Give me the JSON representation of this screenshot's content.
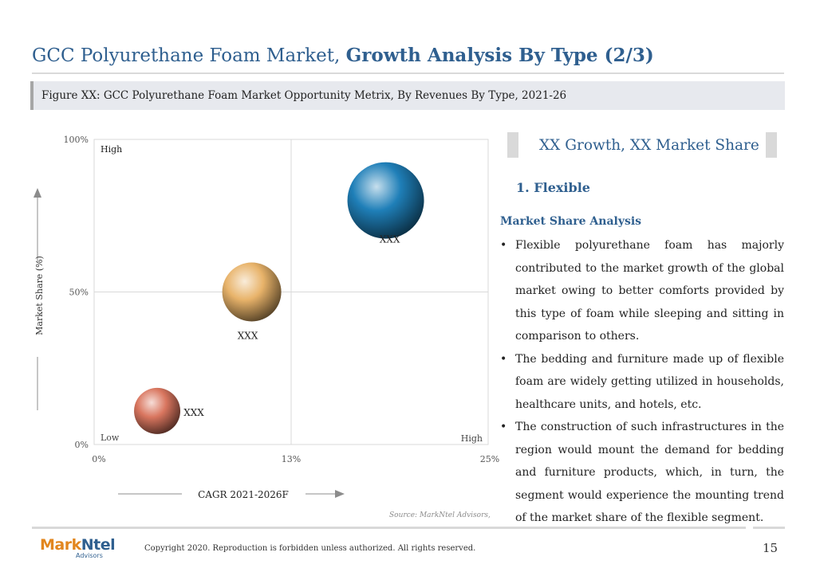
{
  "title": {
    "regular": "GCC Polyurethane Foam Market,",
    "bold": "Growth Analysis By Type (2/3)"
  },
  "figure_caption": "Figure XX: GCC Polyurethane Foam Market Opportunity Metrix, By Revenues By Type, 2021-26",
  "chart_data": {
    "type": "scatter",
    "title": "",
    "xlabel": "CAGR 2021-2026F",
    "ylabel": "Market Share (%)",
    "xlim": [
      0,
      25
    ],
    "ylim": [
      0,
      100
    ],
    "x_ticks": [
      "0%",
      "13%",
      "25%"
    ],
    "y_ticks": [
      "0%",
      "50%",
      "100%"
    ],
    "quadrant_labels": {
      "high_top": "High",
      "low": "Low",
      "high_right": "High"
    },
    "grid": "quadrant lines at midpoints",
    "points": [
      {
        "label": "XXX",
        "x": 18.5,
        "y": 80,
        "color": "#1f7fb8"
      },
      {
        "label": "XXX",
        "x": 10,
        "y": 50,
        "color": "#e8b36a"
      },
      {
        "label": "XXX",
        "x": 4,
        "y": 11,
        "color": "#d9765f"
      }
    ]
  },
  "source": "Source: MarkNtel Advisors,",
  "right_panel": {
    "header": "XX Growth, XX Market Share",
    "segment_title": "1. Flexible",
    "analysis_title": "Market Share Analysis",
    "bullets": [
      "Flexible polyurethane foam has majorly contributed to the market growth of the global market owing to better comforts provided by this type of foam while sleeping and sitting in comparison to others.",
      "The bedding and furniture made up of flexible foam are widely getting utilized in households, healthcare units, and hotels, etc.",
      "The construction of such infrastructures in the region would mount the demand for bedding and furniture products, which, in turn, the segment would experience the mounting trend of the market share of the flexible segment."
    ]
  },
  "footer": {
    "logo_mark": "Mark",
    "logo_ntel": "Ntel",
    "logo_sub": "Advisors",
    "copyright": "Copyright 2020. Reproduction is forbidden unless authorized. All rights reserved.",
    "page_number": "15"
  },
  "colors": {
    "accent": "#2f5f8f",
    "logo_orange": "#e2861e"
  }
}
